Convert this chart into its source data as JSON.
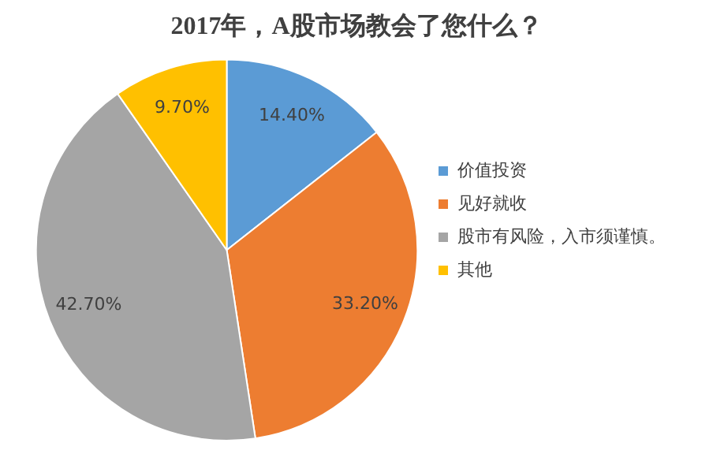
{
  "chart_data": {
    "type": "pie",
    "title": "2017年，A股市场教会了您什么？",
    "categories": [
      "价值投资",
      "见好就收",
      "股市有风险，入市须谨慎。",
      "其他"
    ],
    "values": [
      14.4,
      33.2,
      42.7,
      9.7
    ],
    "colors": [
      "#5b9bd5",
      "#ed7d31",
      "#a5a5a5",
      "#ffc000"
    ],
    "value_labels": [
      "14.40%",
      "33.20%",
      "42.70%",
      "9.70%"
    ],
    "legend": "right"
  }
}
